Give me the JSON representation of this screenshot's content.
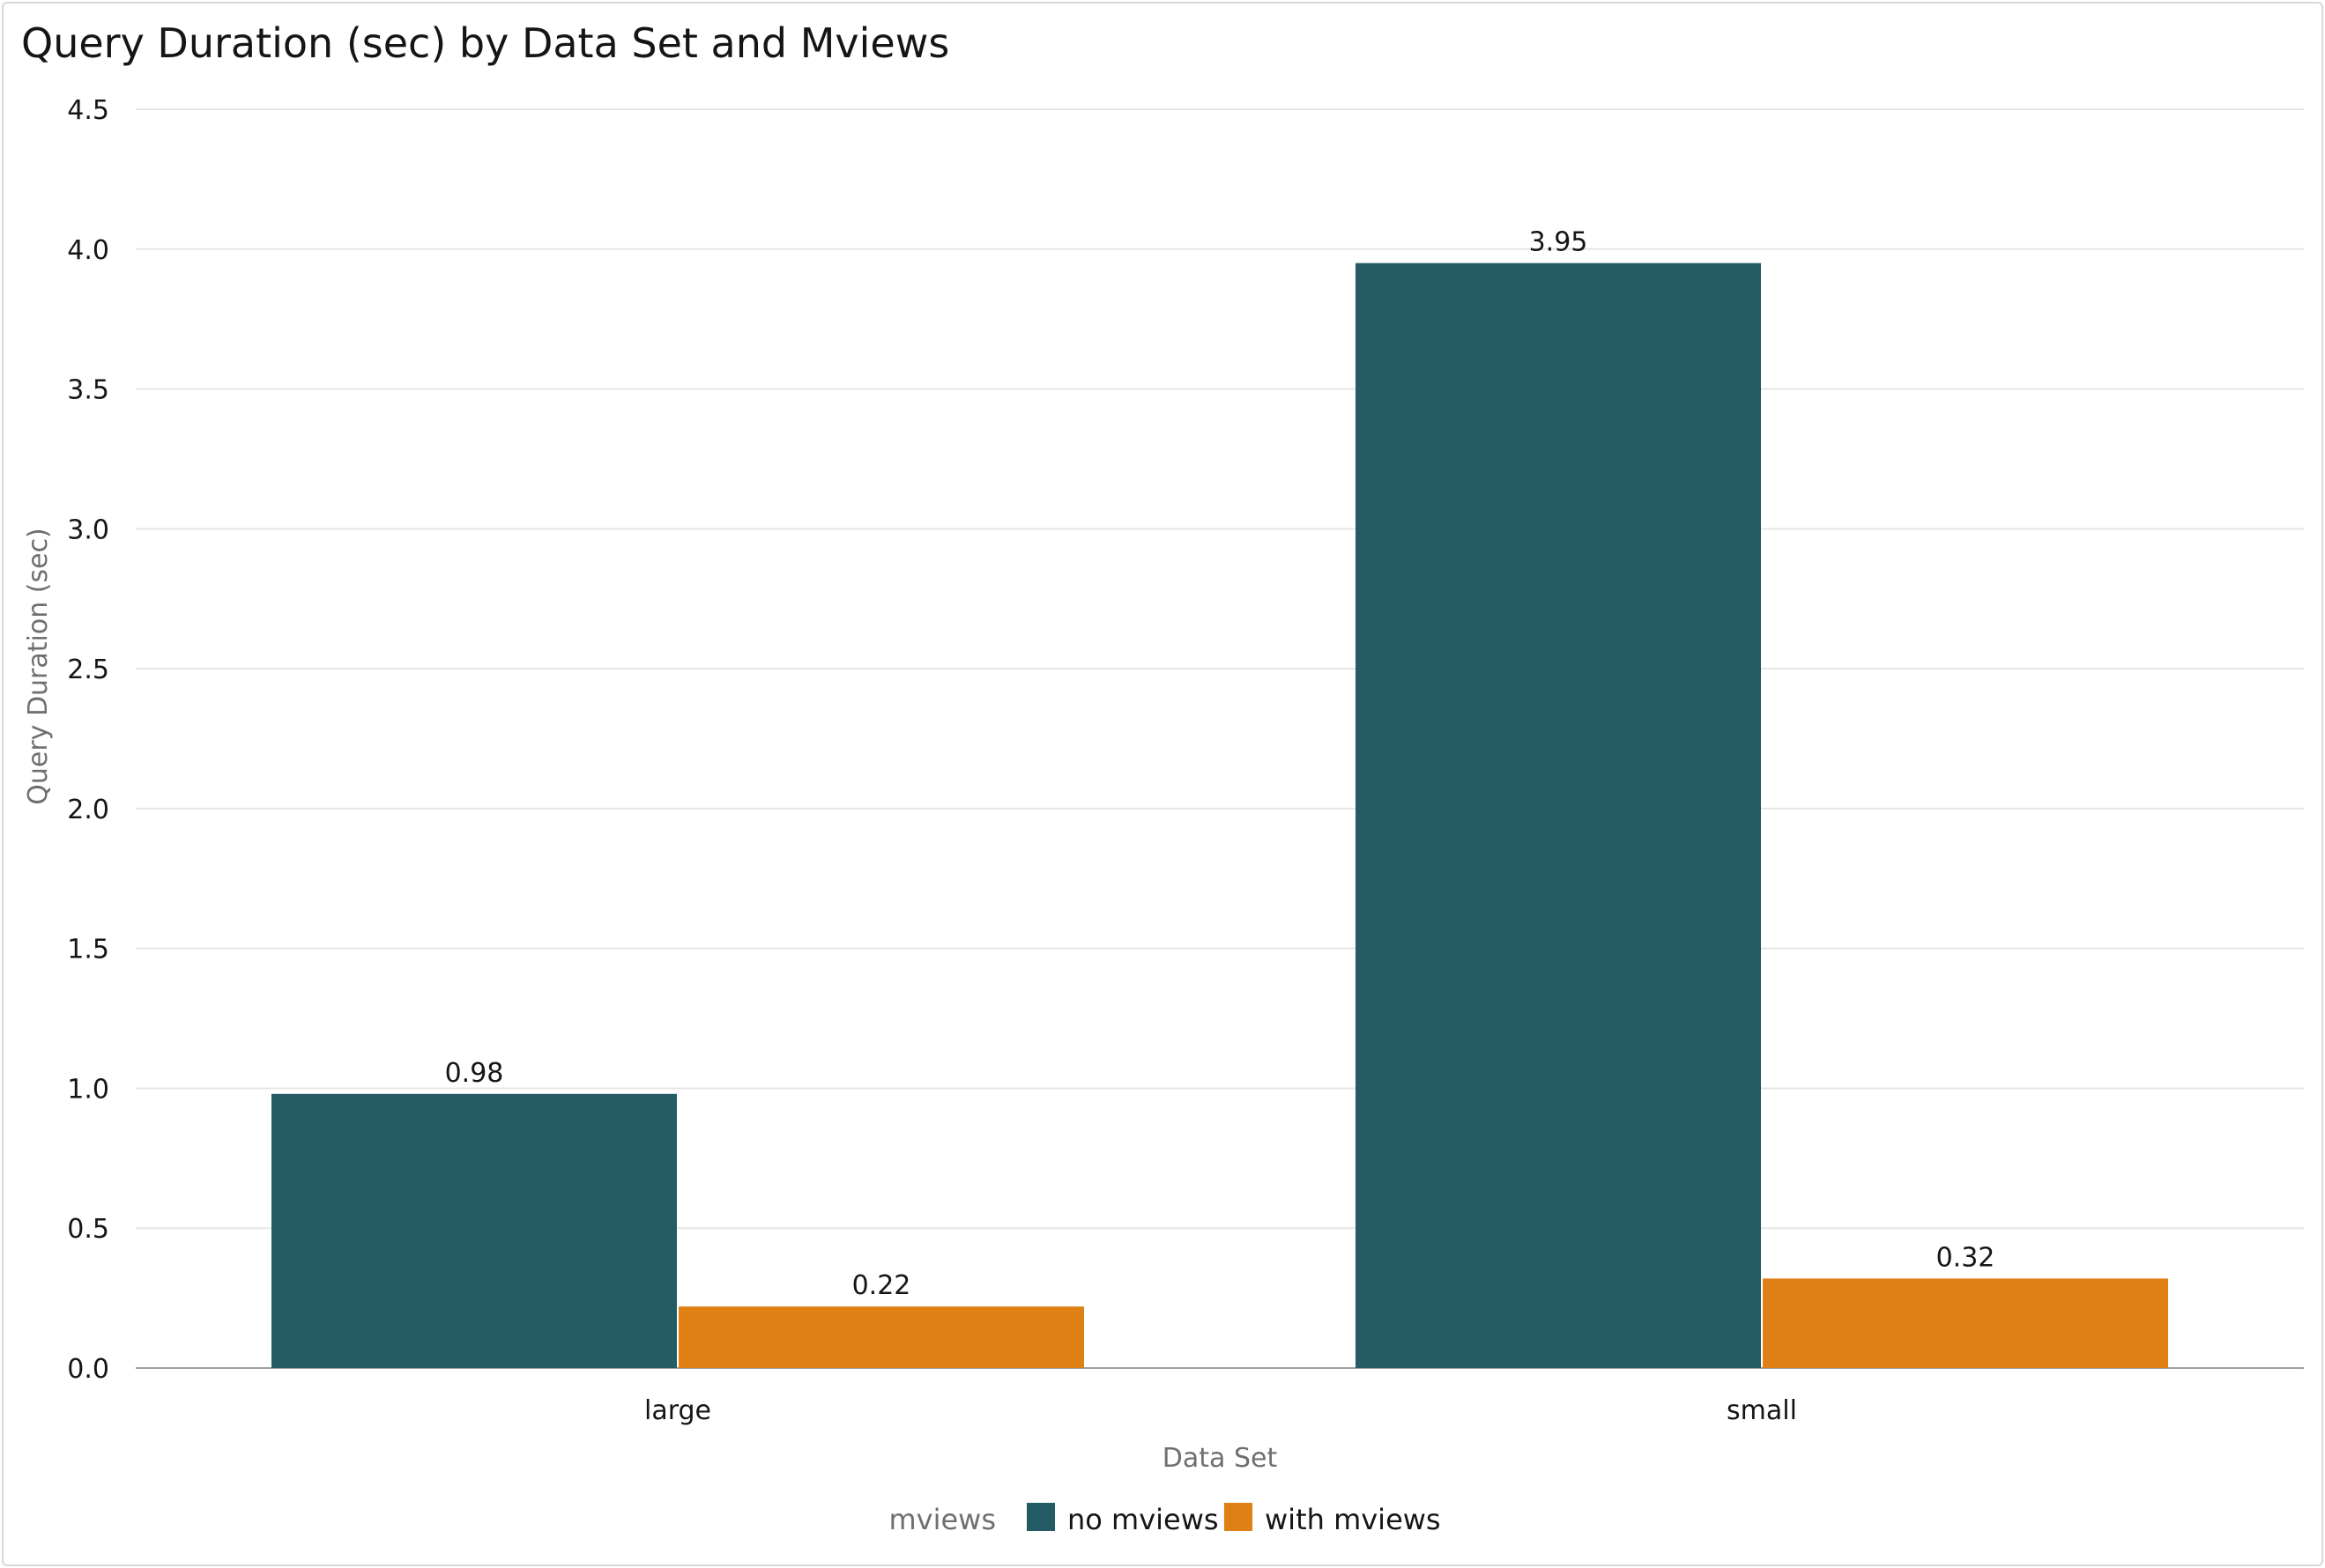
{
  "chart_data": {
    "type": "bar",
    "title": "Query Duration (sec) by Data Set and Mviews",
    "xlabel": "Data Set",
    "ylabel": "Query Duration (sec)",
    "categories": [
      "large",
      "small"
    ],
    "series": [
      {
        "name": "no mviews",
        "values": [
          0.98,
          3.95
        ],
        "labels": [
          "0.98",
          "3.95"
        ],
        "color": "#245c66"
      },
      {
        "name": "with mviews",
        "values": [
          0.22,
          0.32
        ],
        "labels": [
          "0.22",
          "0.32"
        ],
        "color": "#de8014"
      }
    ],
    "ylim": [
      0,
      4.5
    ],
    "yticks": [
      "0.0",
      "0.5",
      "1.0",
      "1.5",
      "2.0",
      "2.5",
      "3.0",
      "3.5",
      "4.0",
      "4.5"
    ],
    "legend": {
      "title": "mviews",
      "position": "bottom"
    },
    "grid": true
  }
}
